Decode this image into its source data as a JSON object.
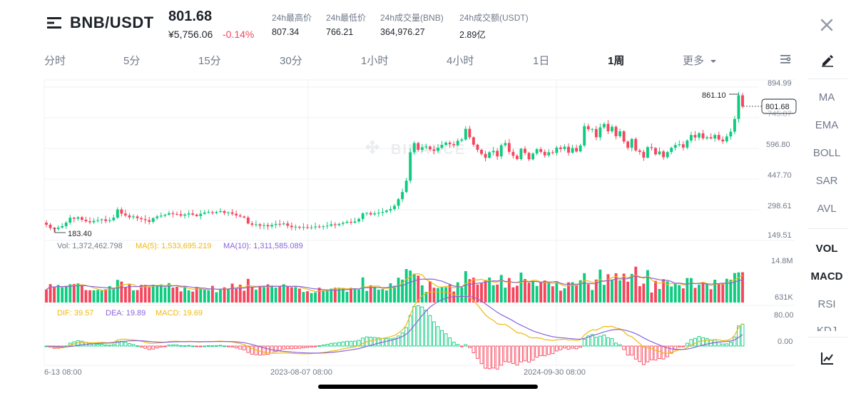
{
  "header": {
    "symbol": "BNB/USDT",
    "last_price": "801.68",
    "cny_price": "¥5,756.06",
    "change_pct": "-0.14%",
    "stats": [
      {
        "label": "24h最高价",
        "value": "807.34"
      },
      {
        "label": "24h最低价",
        "value": "766.21"
      },
      {
        "label": "24h成交量(BNB)",
        "value": "364,976.27"
      },
      {
        "label": "24h成交额(USDT)",
        "value": "2.89亿"
      }
    ]
  },
  "intervals": [
    "分时",
    "5分",
    "15分",
    "30分",
    "1小时",
    "4小时",
    "1日",
    "1周",
    "更多"
  ],
  "active_interval": "1周",
  "side_indicators_main": [
    "MA",
    "EMA",
    "BOLL",
    "SAR",
    "AVL"
  ],
  "side_indicators_sub": [
    "VOL",
    "MACD",
    "RSI",
    "KDJ"
  ],
  "icons": {
    "menu": "menu-icon",
    "close": "close-icon",
    "settings": "settings-icon",
    "draw": "draw-tool-icon",
    "chart": "chart-type-icon",
    "more": "chevron-down-icon",
    "watermark": "binance-logo"
  },
  "colors": {
    "up": "#0ecb81",
    "down": "#f6465d",
    "ma5": "#f0b90b",
    "ma10": "#8a65d8",
    "dif": "#f0b90b",
    "dea": "#8a65d8"
  },
  "chart_data": {
    "type": "candlestick",
    "y_ticks": [
      "894.99",
      "745.87",
      "596.80",
      "447.70",
      "298.61",
      "149.51"
    ],
    "high_marker": "861.10",
    "low_marker": "183.40",
    "current_price_tag": "801.68",
    "x_ticks": [
      "6-13 08:00",
      "2023-08-07 08:00",
      "2024-09-30 08:00"
    ],
    "ylim": [
      149.51,
      894.99
    ],
    "closes": [
      226,
      210,
      205,
      212,
      219,
      236,
      260,
      255,
      262,
      250,
      243,
      238,
      245,
      248,
      252,
      244,
      248,
      260,
      300,
      280,
      271,
      262,
      266,
      258,
      253,
      248,
      240,
      258,
      266,
      270,
      275,
      282,
      278,
      277,
      270,
      276,
      281,
      275,
      268,
      279,
      285,
      287,
      283,
      288,
      292,
      283,
      286,
      279,
      271,
      266,
      261,
      232,
      226,
      228,
      221,
      224,
      218,
      225,
      230,
      228,
      232,
      221,
      214,
      216,
      212,
      214,
      211,
      213,
      217,
      215,
      218,
      221,
      228,
      224,
      230,
      235,
      240,
      236,
      242,
      254,
      281,
      283,
      276,
      281,
      284,
      288,
      295,
      302,
      318,
      350,
      385,
      440,
      578,
      623,
      590,
      602,
      606,
      592,
      585,
      600,
      614,
      625,
      618,
      612,
      634,
      640,
      692,
      651,
      615,
      590,
      570,
      551,
      578,
      585,
      558,
      612,
      623,
      580,
      561,
      545,
      595,
      575,
      544,
      572,
      593,
      580,
      563,
      578,
      575,
      601,
      594,
      605,
      576,
      599,
      582,
      611,
      705,
      690,
      691,
      651,
      699,
      716,
      680,
      702,
      656,
      680,
      630,
      600,
      643,
      587,
      580,
      552,
      603,
      599,
      568,
      582,
      554,
      579,
      600,
      613,
      617,
      601,
      635,
      662,
      650,
      670,
      646,
      651,
      645,
      662,
      640,
      631,
      655,
      678,
      740,
      855,
      801
    ],
    "volume_labels": {
      "vol": "1,372,462.798",
      "ma5": "1,533,695.219",
      "ma10": "1,311,585.089"
    },
    "volume_axis": [
      "14.8M",
      "631K"
    ],
    "macd_labels": {
      "dif": "39.57",
      "dea": "19.89",
      "macd": "19.69"
    },
    "macd_axis": [
      "80.00",
      "0.00"
    ]
  }
}
